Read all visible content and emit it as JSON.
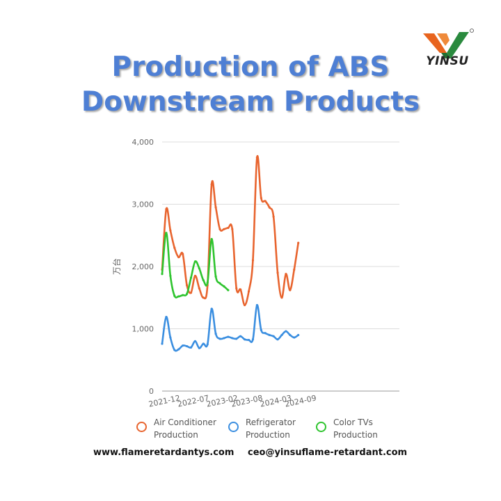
{
  "brand": {
    "name": "YINSU",
    "colors": {
      "orange": "#e8641e",
      "green": "#2a8a3e"
    }
  },
  "title": {
    "line1": "Production of ABS",
    "line2": "Downstream Products"
  },
  "footer": {
    "website": "www.flameretardantys.com",
    "email": "ceo@yinsuflame-retardant.com"
  },
  "chart_data": {
    "type": "line",
    "ylabel": "万台",
    "ylim": [
      0,
      4000
    ],
    "yticks": [
      "0",
      "1,000",
      "2,000",
      "3,000",
      "4,000"
    ],
    "xticks": [
      "2021-12",
      "2022-07",
      "2023-02",
      "2023-08",
      "2024-03",
      "2024-09"
    ],
    "x": [
      "2021-12",
      "2022-01",
      "2022-02",
      "2022-03",
      "2022-04",
      "2022-05",
      "2022-06",
      "2022-07",
      "2022-08",
      "2022-09",
      "2022-10",
      "2022-11",
      "2022-12",
      "2023-01",
      "2023-02",
      "2023-03",
      "2023-04",
      "2023-05",
      "2023-06",
      "2023-07",
      "2023-08",
      "2023-09",
      "2023-10",
      "2023-11",
      "2023-12",
      "2024-01",
      "2024-02",
      "2024-03",
      "2024-04",
      "2024-05",
      "2024-06",
      "2024-07",
      "2024-08",
      "2024-09",
      "2024-10",
      "2024-11"
    ],
    "grid": true,
    "legend_position": "bottom",
    "series": [
      {
        "name": "Air Conditioner\nProduction",
        "color": "#e8642e",
        "values": [
          1950,
          2920,
          2580,
          2300,
          2150,
          2200,
          1700,
          1580,
          1850,
          1650,
          1500,
          1700,
          3320,
          2950,
          2600,
          2600,
          2620,
          2600,
          1650,
          1630,
          1380,
          1600,
          2100,
          3750,
          3100,
          3050,
          2950,
          2800,
          1900,
          1500,
          1880,
          1620,
          1950,
          2380,
          null,
          null
        ]
      },
      {
        "name": "Refrigerator\nProduction",
        "color": "#3a8ee0",
        "values": [
          760,
          1190,
          860,
          660,
          670,
          730,
          720,
          700,
          800,
          690,
          760,
          750,
          1320,
          920,
          840,
          850,
          870,
          850,
          840,
          880,
          830,
          820,
          830,
          1380,
          980,
          930,
          900,
          880,
          830,
          900,
          960,
          900,
          860,
          900,
          null,
          null
        ]
      },
      {
        "name": "Color TVs\nProduction",
        "color": "#2ec42e",
        "values": [
          1880,
          2540,
          1850,
          1530,
          1520,
          1540,
          1560,
          1820,
          2080,
          1970,
          1780,
          1740,
          2440,
          1840,
          1730,
          1680,
          1620,
          null,
          null,
          null,
          null,
          null,
          null,
          null,
          null,
          null,
          null,
          null,
          null,
          null,
          null,
          null,
          null,
          null,
          null,
          null
        ]
      }
    ]
  }
}
